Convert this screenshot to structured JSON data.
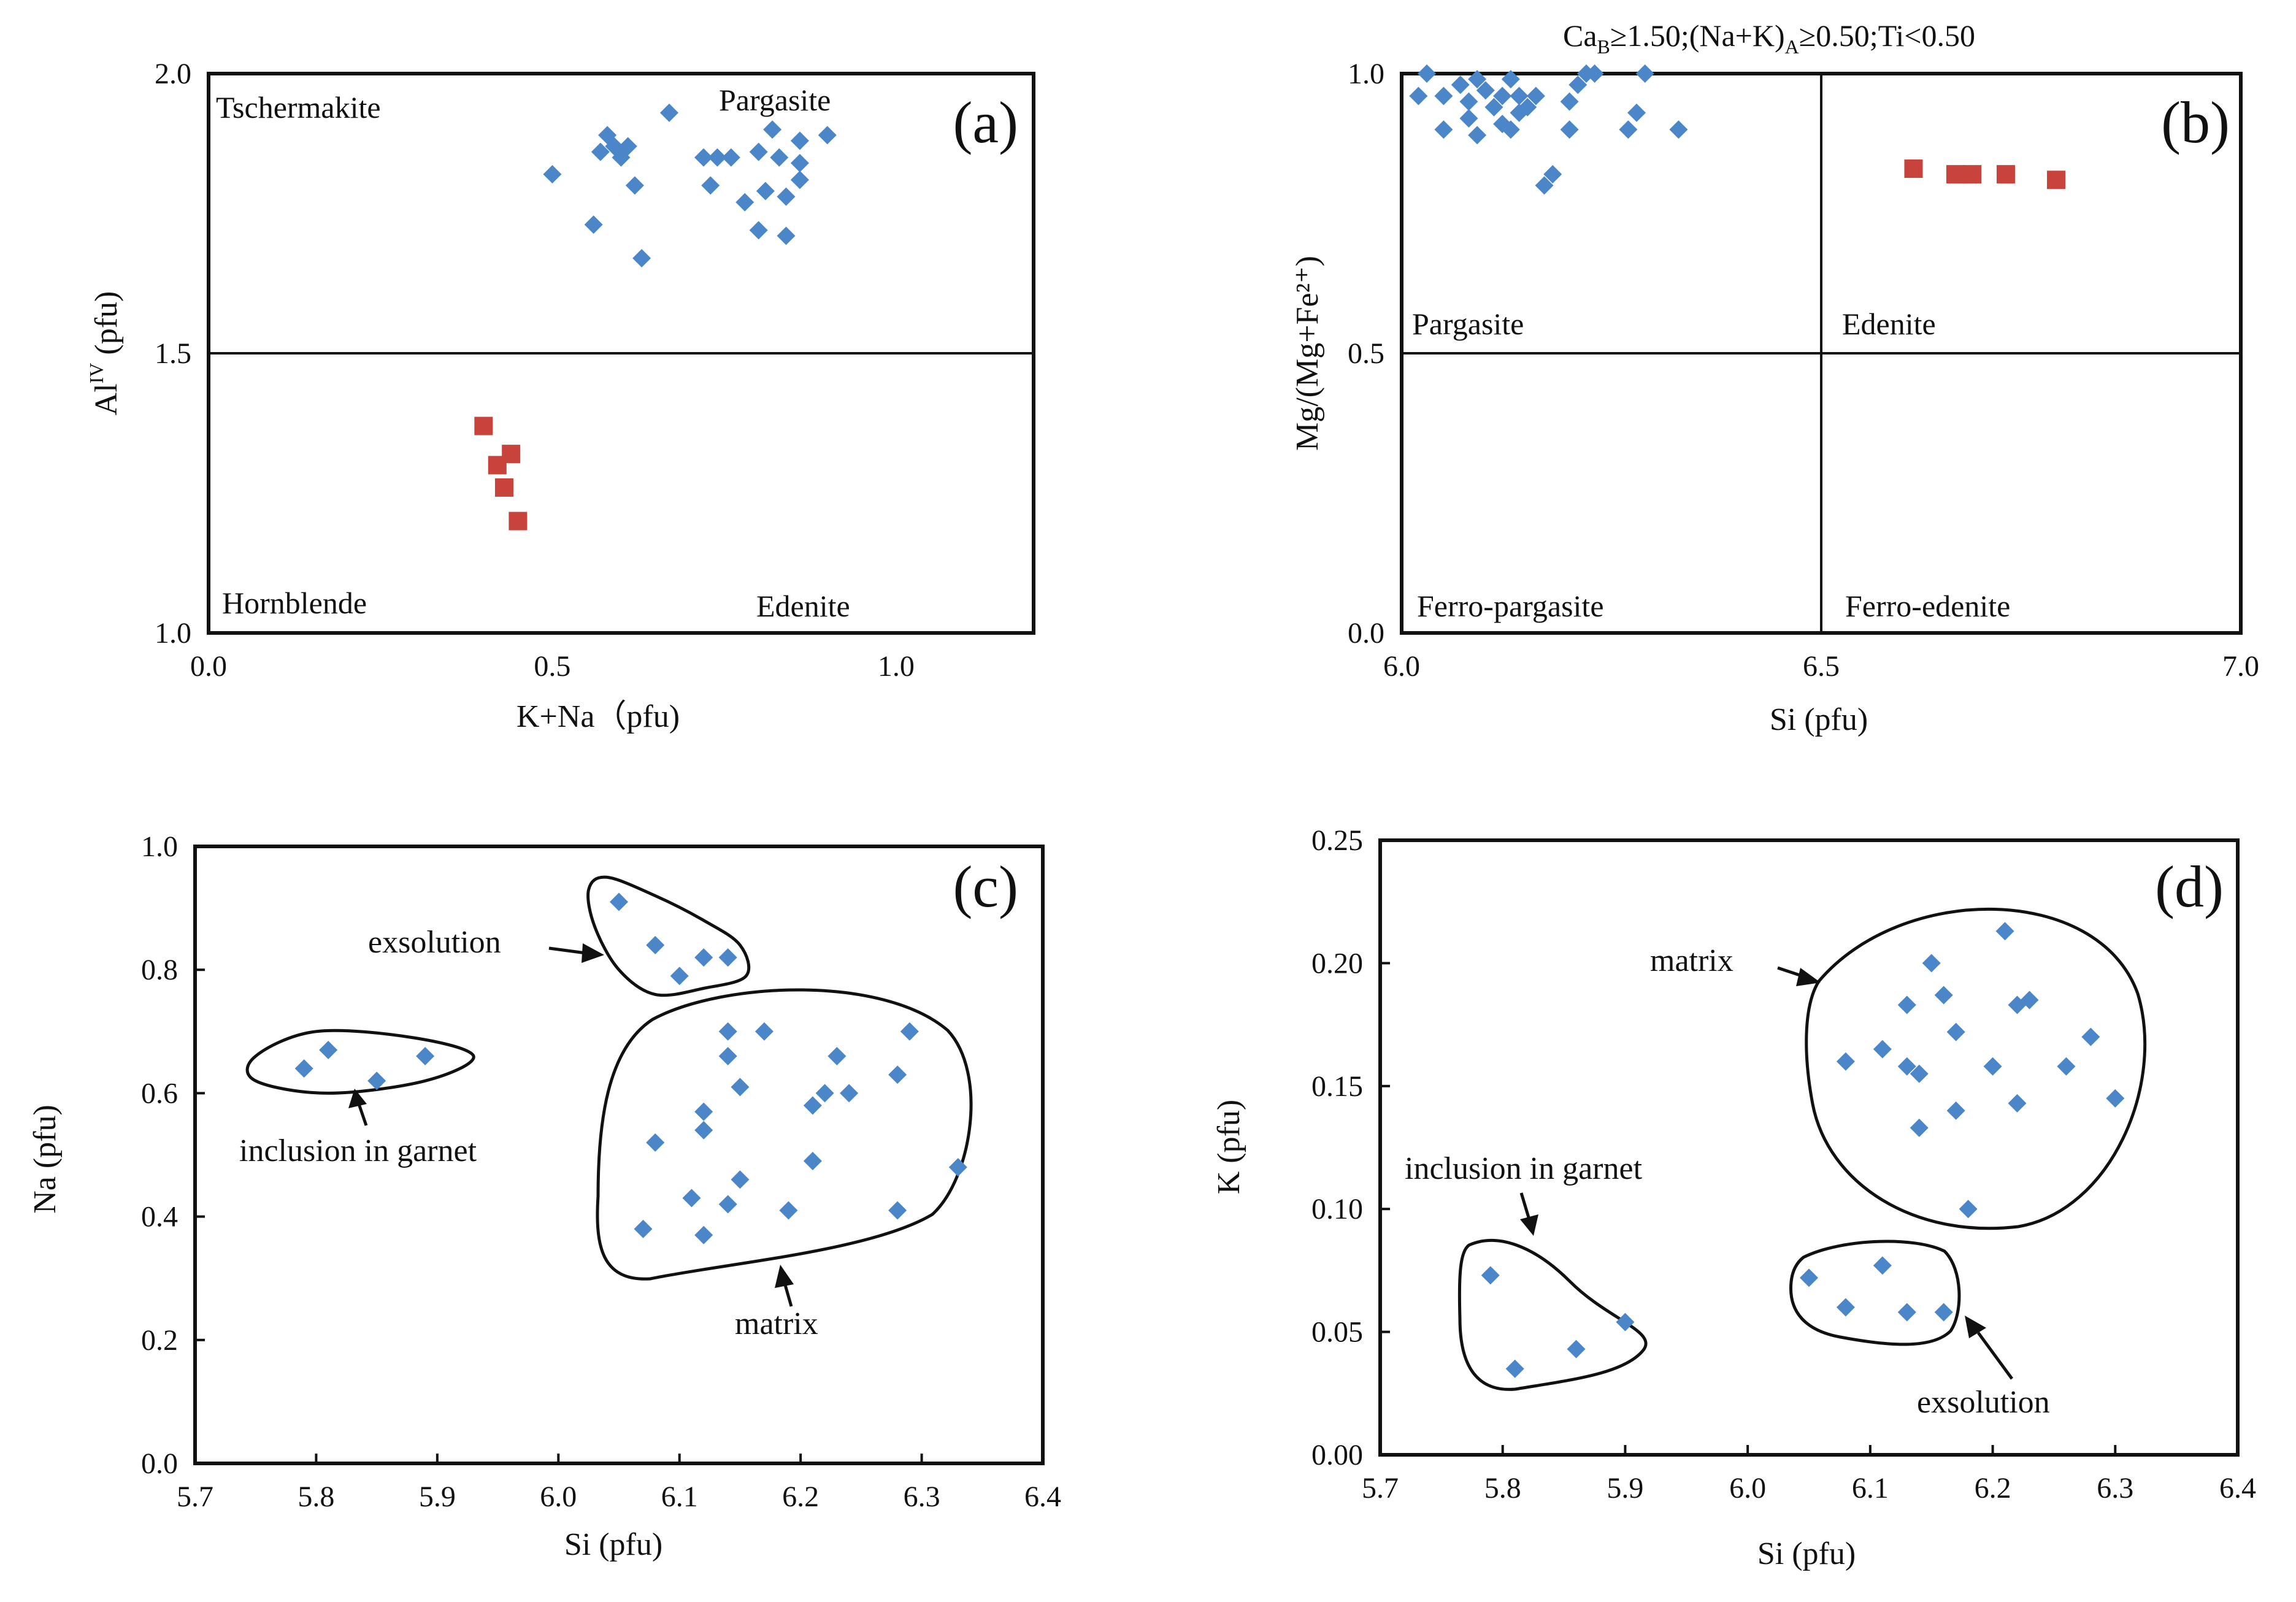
{
  "colors": {
    "blue_marker": "#4a86c8",
    "red_marker": "#c8433b",
    "ink": "#111111"
  },
  "chart_data": [
    {
      "id": "a",
      "type": "scatter",
      "panel_label": "(a)",
      "xlabel": "K+Na（pfu)",
      "ylabel_main": "Al",
      "ylabel_sup": "IV",
      "ylabel_rest": " (pfu)",
      "xlim": [
        0.0,
        1.2
      ],
      "ylim": [
        1.0,
        2.0
      ],
      "xticks": [
        {
          "v": 0.0,
          "label": "0.0"
        },
        {
          "v": 0.5,
          "label": "0.5"
        },
        {
          "v": 1.0,
          "label": "1.0"
        }
      ],
      "yticks": [
        {
          "v": 1.0,
          "label": "1.0"
        },
        {
          "v": 1.5,
          "label": "1.5"
        },
        {
          "v": 2.0,
          "label": "2.0"
        }
      ],
      "dividers": {
        "h": [
          1.5
        ],
        "v": []
      },
      "regions": [
        {
          "label": "Tschermakite",
          "anchor": "top-left"
        },
        {
          "label": "Pargasite",
          "anchor": "top-right"
        },
        {
          "label": "Hornblende",
          "anchor": "bottom-left"
        },
        {
          "label": "Edenite",
          "anchor": "bottom-right"
        }
      ],
      "series": [
        {
          "name": "blue",
          "marker": "diamond",
          "color": "#4a86c8",
          "points": [
            [
              0.5,
              1.82
            ],
            [
              0.56,
              1.73
            ],
            [
              0.57,
              1.86
            ],
            [
              0.58,
              1.89
            ],
            [
              0.59,
              1.87
            ],
            [
              0.6,
              1.85
            ],
            [
              0.61,
              1.87
            ],
            [
              0.62,
              1.8
            ],
            [
              0.63,
              1.67
            ],
            [
              0.67,
              1.93
            ],
            [
              0.72,
              1.85
            ],
            [
              0.73,
              1.8
            ],
            [
              0.74,
              1.85
            ],
            [
              0.76,
              1.85
            ],
            [
              0.78,
              1.77
            ],
            [
              0.8,
              1.86
            ],
            [
              0.8,
              1.72
            ],
            [
              0.81,
              1.79
            ],
            [
              0.82,
              1.9
            ],
            [
              0.83,
              1.85
            ],
            [
              0.84,
              1.78
            ],
            [
              0.84,
              1.71
            ],
            [
              0.86,
              1.81
            ],
            [
              0.86,
              1.84
            ],
            [
              0.86,
              1.88
            ],
            [
              0.9,
              1.89
            ]
          ]
        },
        {
          "name": "red",
          "marker": "square",
          "color": "#c8433b",
          "points": [
            [
              0.4,
              1.37
            ],
            [
              0.42,
              1.3
            ],
            [
              0.43,
              1.26
            ],
            [
              0.44,
              1.32
            ],
            [
              0.45,
              1.2
            ]
          ]
        }
      ]
    },
    {
      "id": "b",
      "type": "scatter",
      "panel_label": "(b)",
      "xlabel": "Si (pfu)",
      "ylabel": "Mg/(Mg+Fe²⁺)",
      "note_parts": [
        "Ca",
        "B",
        "≥1.50;(Na+K)",
        "A",
        "≥0.50;Ti<0.50"
      ],
      "xlim": [
        6.0,
        7.0
      ],
      "ylim": [
        0.0,
        1.0
      ],
      "xticks": [
        {
          "v": 6.0,
          "label": "6.0"
        },
        {
          "v": 6.5,
          "label": "6.5"
        },
        {
          "v": 7.0,
          "label": "7.0"
        }
      ],
      "yticks": [
        {
          "v": 0.0,
          "label": "0.0"
        },
        {
          "v": 0.5,
          "label": "0.5"
        },
        {
          "v": 1.0,
          "label": "1.0"
        }
      ],
      "dividers": {
        "h": [
          0.5
        ],
        "v": [
          6.5
        ]
      },
      "regions": [
        {
          "label": "Pargasite",
          "anchor": "upper-left-below"
        },
        {
          "label": "Edenite",
          "anchor": "upper-right-below"
        },
        {
          "label": "Ferro-pargasite",
          "anchor": "bottom-left"
        },
        {
          "label": "Ferro-edenite",
          "anchor": "bottom-right"
        }
      ],
      "series": [
        {
          "name": "blue",
          "marker": "diamond",
          "color": "#4a86c8",
          "points": [
            [
              6.02,
              0.96
            ],
            [
              6.05,
              0.96
            ],
            [
              6.05,
              0.9
            ],
            [
              6.07,
              0.98
            ],
            [
              6.08,
              0.95
            ],
            [
              6.08,
              0.92
            ],
            [
              6.09,
              0.99
            ],
            [
              6.09,
              0.89
            ],
            [
              6.1,
              0.97
            ],
            [
              6.11,
              0.94
            ],
            [
              6.12,
              0.96
            ],
            [
              6.12,
              0.91
            ],
            [
              6.13,
              0.99
            ],
            [
              6.13,
              0.9
            ],
            [
              6.14,
              0.93
            ],
            [
              6.14,
              0.96
            ],
            [
              6.15,
              0.94
            ],
            [
              6.16,
              0.96
            ],
            [
              6.17,
              0.8
            ],
            [
              6.18,
              0.82
            ],
            [
              6.2,
              0.95
            ],
            [
              6.2,
              0.9
            ],
            [
              6.21,
              0.98
            ],
            [
              6.22,
              1.0
            ],
            [
              6.23,
              1.0
            ],
            [
              6.27,
              0.9
            ],
            [
              6.28,
              0.93
            ],
            [
              6.29,
              1.0
            ],
            [
              6.33,
              0.9
            ],
            [
              6.03,
              1.0
            ]
          ]
        },
        {
          "name": "red",
          "marker": "square",
          "color": "#c8433b",
          "points": [
            [
              6.61,
              0.83
            ],
            [
              6.66,
              0.82
            ],
            [
              6.68,
              0.82
            ],
            [
              6.72,
              0.82
            ],
            [
              6.78,
              0.81
            ]
          ]
        }
      ]
    },
    {
      "id": "c",
      "type": "scatter",
      "panel_label": "(c)",
      "xlabel": "Si (pfu)",
      "ylabel": "Na (pfu)",
      "xlim": [
        5.7,
        6.4
      ],
      "ylim": [
        0.0,
        1.0
      ],
      "xticks": [
        {
          "v": 5.7,
          "label": "5.7"
        },
        {
          "v": 5.8,
          "label": "5.8"
        },
        {
          "v": 5.9,
          "label": "5.9"
        },
        {
          "v": 6.0,
          "label": "6.0"
        },
        {
          "v": 6.1,
          "label": "6.1"
        },
        {
          "v": 6.2,
          "label": "6.2"
        },
        {
          "v": 6.3,
          "label": "6.3"
        },
        {
          "v": 6.4,
          "label": "6.4"
        }
      ],
      "yticks": [
        {
          "v": 0.0,
          "label": "0.0"
        },
        {
          "v": 0.2,
          "label": "0.2"
        },
        {
          "v": 0.4,
          "label": "0.4"
        },
        {
          "v": 0.6,
          "label": "0.6"
        },
        {
          "v": 0.8,
          "label": "0.8"
        },
        {
          "v": 1.0,
          "label": "1.0"
        }
      ],
      "groups": [
        {
          "label": "exsolution",
          "points": [
            [
              6.05,
              0.91
            ],
            [
              6.08,
              0.84
            ],
            [
              6.1,
              0.79
            ],
            [
              6.12,
              0.82
            ],
            [
              6.14,
              0.82
            ]
          ],
          "hull": [
            [
              6.04,
              0.95
            ],
            [
              6.08,
              0.92
            ],
            [
              6.12,
              0.88
            ],
            [
              6.15,
              0.84
            ],
            [
              6.155,
              0.79
            ],
            [
              6.12,
              0.77
            ],
            [
              6.08,
              0.76
            ],
            [
              6.05,
              0.8
            ],
            [
              6.03,
              0.87
            ],
            [
              6.025,
              0.93
            ]
          ]
        },
        {
          "label": "inclusion in garnet",
          "points": [
            [
              5.79,
              0.64
            ],
            [
              5.81,
              0.67
            ],
            [
              5.85,
              0.62
            ],
            [
              5.89,
              0.66
            ]
          ],
          "hull": [
            [
              5.75,
              0.66
            ],
            [
              5.8,
              0.7
            ],
            [
              5.88,
              0.69
            ],
            [
              5.93,
              0.66
            ],
            [
              5.89,
              0.62
            ],
            [
              5.81,
              0.6
            ],
            [
              5.75,
              0.62
            ]
          ]
        },
        {
          "label": "matrix",
          "points": [
            [
              6.07,
              0.38
            ],
            [
              6.08,
              0.52
            ],
            [
              6.11,
              0.43
            ],
            [
              6.12,
              0.37
            ],
            [
              6.12,
              0.54
            ],
            [
              6.12,
              0.57
            ],
            [
              6.14,
              0.42
            ],
            [
              6.14,
              0.66
            ],
            [
              6.14,
              0.7
            ],
            [
              6.15,
              0.61
            ],
            [
              6.15,
              0.46
            ],
            [
              6.17,
              0.7
            ],
            [
              6.19,
              0.41
            ],
            [
              6.21,
              0.58
            ],
            [
              6.21,
              0.49
            ],
            [
              6.22,
              0.6
            ],
            [
              6.23,
              0.66
            ],
            [
              6.24,
              0.6
            ],
            [
              6.28,
              0.63
            ],
            [
              6.28,
              0.41
            ],
            [
              6.29,
              0.7
            ],
            [
              6.33,
              0.48
            ]
          ]
        }
      ]
    },
    {
      "id": "d",
      "type": "scatter",
      "panel_label": "(d)",
      "xlabel": "Si (pfu)",
      "ylabel": "K (pfu)",
      "xlim": [
        5.7,
        6.4
      ],
      "ylim": [
        0.0,
        0.25
      ],
      "xticks": [
        {
          "v": 5.7,
          "label": "5.7"
        },
        {
          "v": 5.8,
          "label": "5.8"
        },
        {
          "v": 5.9,
          "label": "5.9"
        },
        {
          "v": 6.0,
          "label": "6.0"
        },
        {
          "v": 6.1,
          "label": "6.1"
        },
        {
          "v": 6.2,
          "label": "6.2"
        },
        {
          "v": 6.3,
          "label": "6.3"
        },
        {
          "v": 6.4,
          "label": "6.4"
        }
      ],
      "yticks": [
        {
          "v": 0.0,
          "label": "0.00"
        },
        {
          "v": 0.05,
          "label": "0.05"
        },
        {
          "v": 0.1,
          "label": "0.10"
        },
        {
          "v": 0.15,
          "label": "0.15"
        },
        {
          "v": 0.2,
          "label": "0.20"
        },
        {
          "v": 0.25,
          "label": "0.25"
        }
      ],
      "groups": [
        {
          "label": "matrix",
          "points": [
            [
              6.08,
              0.16
            ],
            [
              6.11,
              0.165
            ],
            [
              6.13,
              0.183
            ],
            [
              6.13,
              0.158
            ],
            [
              6.14,
              0.155
            ],
            [
              6.14,
              0.133
            ],
            [
              6.15,
              0.2
            ],
            [
              6.16,
              0.187
            ],
            [
              6.17,
              0.14
            ],
            [
              6.17,
              0.172
            ],
            [
              6.18,
              0.1
            ],
            [
              6.2,
              0.158
            ],
            [
              6.21,
              0.213
            ],
            [
              6.22,
              0.183
            ],
            [
              6.22,
              0.143
            ],
            [
              6.23,
              0.185
            ],
            [
              6.26,
              0.158
            ],
            [
              6.28,
              0.17
            ],
            [
              6.3,
              0.145
            ]
          ]
        },
        {
          "label": "inclusion in garnet",
          "points": [
            [
              5.79,
              0.073
            ],
            [
              5.81,
              0.035
            ],
            [
              5.86,
              0.043
            ],
            [
              5.9,
              0.054
            ]
          ]
        },
        {
          "label": "exsolution",
          "points": [
            [
              6.05,
              0.072
            ],
            [
              6.08,
              0.06
            ],
            [
              6.11,
              0.077
            ],
            [
              6.13,
              0.058
            ],
            [
              6.16,
              0.058
            ]
          ]
        }
      ]
    }
  ]
}
